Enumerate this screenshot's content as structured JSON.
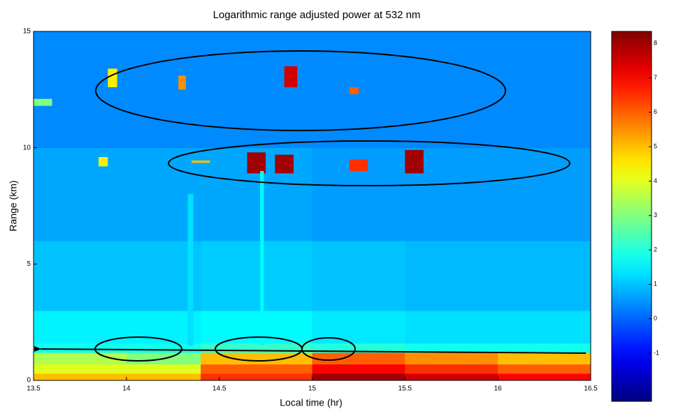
{
  "chart_data": {
    "type": "heatmap",
    "title": "Logarithmic range adjusted power at  532 nm",
    "xlabel": "Local time (hr)",
    "ylabel": "Range (km)",
    "xlim": [
      13.5,
      16.5
    ],
    "ylim": [
      0,
      15
    ],
    "xticks": [
      13.5,
      14,
      14.5,
      15,
      15.5,
      16,
      16.5
    ],
    "yticks": [
      0,
      5,
      10,
      15
    ],
    "colormap": "jet",
    "clim": [
      -2.4,
      8.35
    ],
    "cticks": [
      -1,
      0,
      1,
      2,
      3,
      4,
      5,
      6,
      7,
      8
    ],
    "x_bins": [
      13.5,
      14,
      14.4,
      15,
      15.5,
      16,
      16.5
    ],
    "y_bins": [
      0,
      0.3,
      0.7,
      1.2,
      1.6,
      3,
      6,
      10,
      15
    ],
    "z": [
      [
        5,
        5,
        6.5,
        8,
        7.5,
        7
      ],
      [
        4,
        4,
        6,
        7,
        6.5,
        6
      ],
      [
        3.5,
        3,
        5,
        6,
        5.5,
        5
      ],
      [
        1.8,
        1.8,
        2.2,
        2,
        1.8,
        1.8
      ],
      [
        1.5,
        1.5,
        1.6,
        1.4,
        1.3,
        1.3
      ],
      [
        1,
        1,
        1.1,
        1,
        0.9,
        0.9
      ],
      [
        0.7,
        0.7,
        0.7,
        0.6,
        0.6,
        0.6
      ],
      [
        0.4,
        0.4,
        0.4,
        0.4,
        0.4,
        0.4
      ]
    ],
    "clouds": {
      "x0": [
        13.85,
        14.35,
        14.65,
        14.8,
        15.2,
        15.5,
        14.85,
        13.9,
        14.28,
        15.2,
        13.5,
        14.72,
        14.33
      ],
      "x1": [
        13.9,
        14.45,
        14.75,
        14.9,
        15.3,
        15.6,
        14.92,
        13.95,
        14.32,
        15.25,
        13.6,
        14.74,
        14.36
      ],
      "y0": [
        9.2,
        9.35,
        8.9,
        8.9,
        9,
        8.9,
        12.6,
        12.6,
        12.5,
        12.3,
        11.8,
        1.5,
        1.5
      ],
      "y1": [
        9.6,
        9.45,
        9.8,
        9.7,
        9.5,
        9.9,
        13.5,
        13.4,
        13.1,
        12.6,
        12.1,
        9,
        8
      ],
      "values": [
        4.5,
        5,
        8,
        8,
        6.5,
        8,
        7.5,
        4.5,
        5.5,
        6,
        3,
        1.6,
        1.3
      ]
    }
  }
}
